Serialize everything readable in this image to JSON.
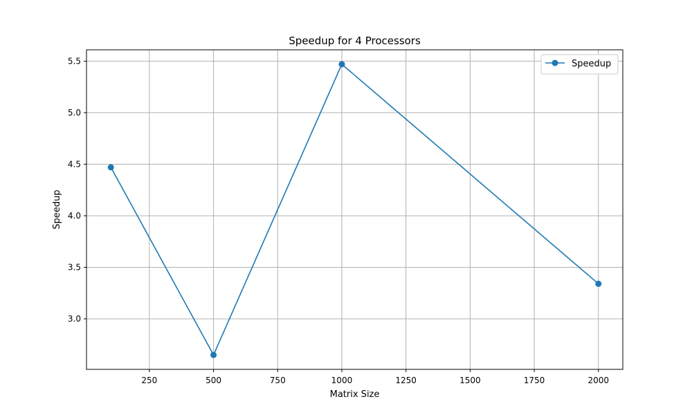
{
  "chart_data": {
    "type": "line",
    "title": "Speedup for 4 Processors",
    "xlabel": "Matrix Size",
    "ylabel": "Speedup",
    "x": [
      100,
      500,
      1000,
      2000
    ],
    "series": [
      {
        "name": "Speedup",
        "values": [
          4.47,
          2.65,
          5.47,
          3.34
        ],
        "color": "#1f77b4",
        "marker": "circle"
      }
    ],
    "xlim": [
      5,
      2095
    ],
    "ylim": [
      2.51,
      5.61
    ],
    "xticks": [
      250,
      500,
      750,
      1000,
      1250,
      1500,
      1750,
      2000
    ],
    "xtick_labels": [
      "250",
      "500",
      "750",
      "1000",
      "1250",
      "1500",
      "1750",
      "2000"
    ],
    "yticks": [
      3.0,
      3.5,
      4.0,
      4.5,
      5.0,
      5.5
    ],
    "ytick_labels": [
      "3.0",
      "3.5",
      "4.0",
      "4.5",
      "5.0",
      "5.5"
    ],
    "grid": true,
    "legend_position": "top-right"
  }
}
